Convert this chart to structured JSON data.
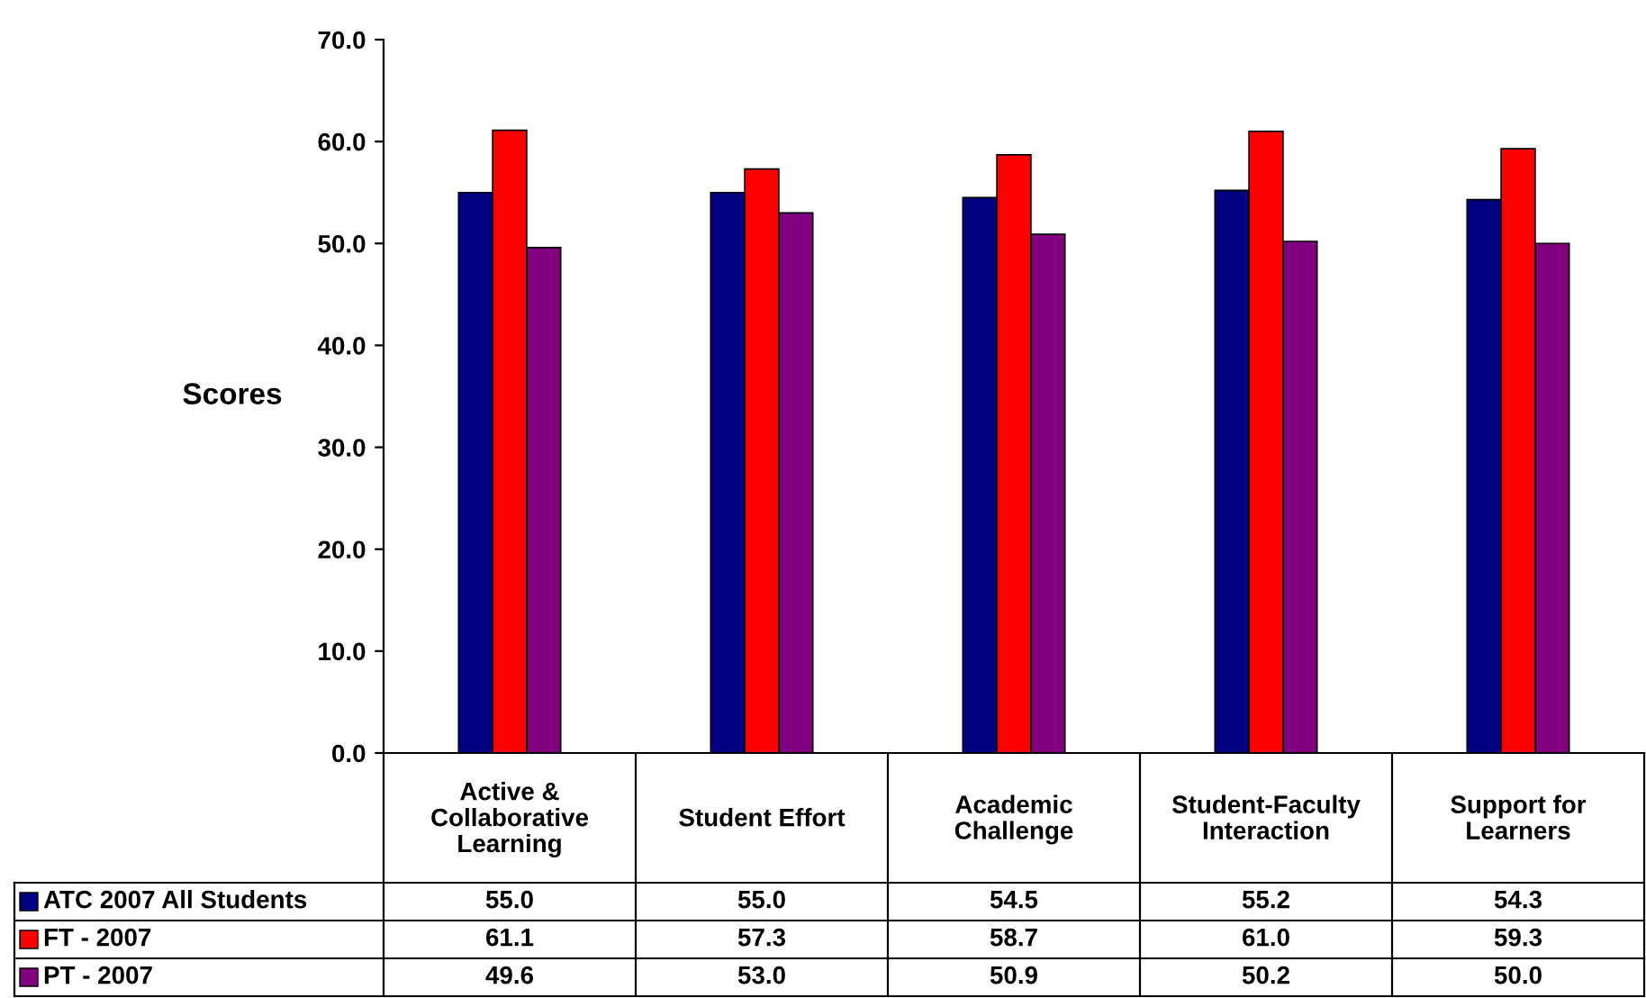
{
  "chart_data": {
    "type": "bar",
    "ylabel": "Scores",
    "categories": [
      "Active & Collaborative Learning",
      "Student Effort",
      "Academic Challenge",
      "Student-Faculty Interaction",
      "Support for Learners"
    ],
    "series": [
      {
        "name": "ATC 2007 All Students",
        "color": "#000080",
        "values": [
          55.0,
          55.0,
          54.5,
          55.2,
          54.3
        ],
        "value_labels": [
          "55.0",
          "55.0",
          "54.5",
          "55.2",
          "54.3"
        ]
      },
      {
        "name": "FT - 2007",
        "color": "#ff0000",
        "values": [
          61.1,
          57.3,
          58.7,
          61.0,
          59.3
        ],
        "value_labels": [
          "61.1",
          "57.3",
          "58.7",
          "61.0",
          "59.3"
        ]
      },
      {
        "name": "PT - 2007",
        "color": "#800080",
        "values": [
          49.6,
          53.0,
          50.9,
          50.2,
          50.0
        ],
        "value_labels": [
          "49.6",
          "53.0",
          "50.9",
          "50.2",
          "50.0"
        ]
      }
    ],
    "ylim": [
      0,
      70
    ],
    "yticks": [
      {
        "value": 0,
        "label": "0.0"
      },
      {
        "value": 10,
        "label": "10.0"
      },
      {
        "value": 20,
        "label": "20.0"
      },
      {
        "value": 30,
        "label": "30.0"
      },
      {
        "value": 40,
        "label": "40.0"
      },
      {
        "value": 50,
        "label": "50.0"
      },
      {
        "value": 60,
        "label": "60.0"
      },
      {
        "value": 70,
        "label": "70.0"
      }
    ],
    "grid": false,
    "legend": "bottom left"
  }
}
